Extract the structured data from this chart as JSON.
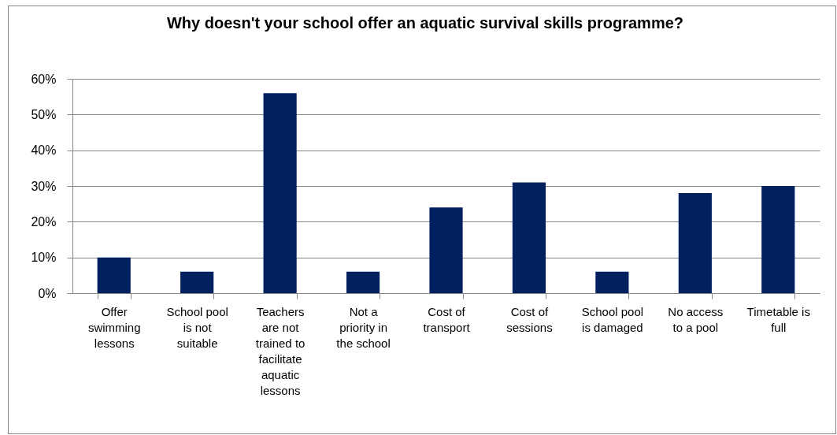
{
  "chart_data": {
    "type": "bar",
    "title": "Why doesn't your school offer an aquatic survival skills programme?",
    "categories": [
      "Offer swimming lessons",
      "School pool is not suitable",
      "Teachers are not trained to facilitate aquatic lessons",
      "Not a priority in the school",
      "Cost of transport",
      "Cost of sessions",
      "School pool is damaged",
      "No access to a pool",
      "Timetable is full"
    ],
    "values": [
      10,
      6,
      56,
      6,
      24,
      31,
      6,
      28,
      30
    ],
    "color": "#002060",
    "ylim": [
      0,
      60
    ],
    "yticks": [
      {
        "value": 0,
        "label": "0%"
      },
      {
        "value": 10,
        "label": "10%"
      },
      {
        "value": 20,
        "label": "20%"
      },
      {
        "value": 30,
        "label": "30%"
      },
      {
        "value": 40,
        "label": "40%"
      },
      {
        "value": 50,
        "label": "50%"
      },
      {
        "value": 60,
        "label": "60%"
      }
    ],
    "grid": "y"
  }
}
